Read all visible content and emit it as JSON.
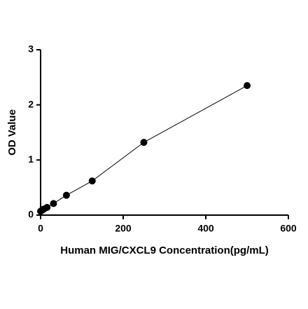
{
  "chart_data": {
    "type": "scatter",
    "x_label": "Human MIG/CXCL9 Concentration(pg/mL)",
    "y_label": "OD Value",
    "series": [
      {
        "color": "#000000",
        "x": [
          0,
          3.9,
          7.8,
          15.6,
          31.25,
          62.5,
          125,
          250,
          500
        ],
        "values": [
          0.07,
          0.09,
          0.11,
          0.14,
          0.21,
          0.36,
          0.62,
          1.32,
          2.35
        ]
      }
    ],
    "xlim": [
      0,
      600
    ],
    "xticks": [
      0,
      200,
      400,
      600
    ],
    "ylim": [
      0,
      3
    ],
    "yticks": [
      0,
      1,
      2,
      3
    ],
    "grid": false
  }
}
